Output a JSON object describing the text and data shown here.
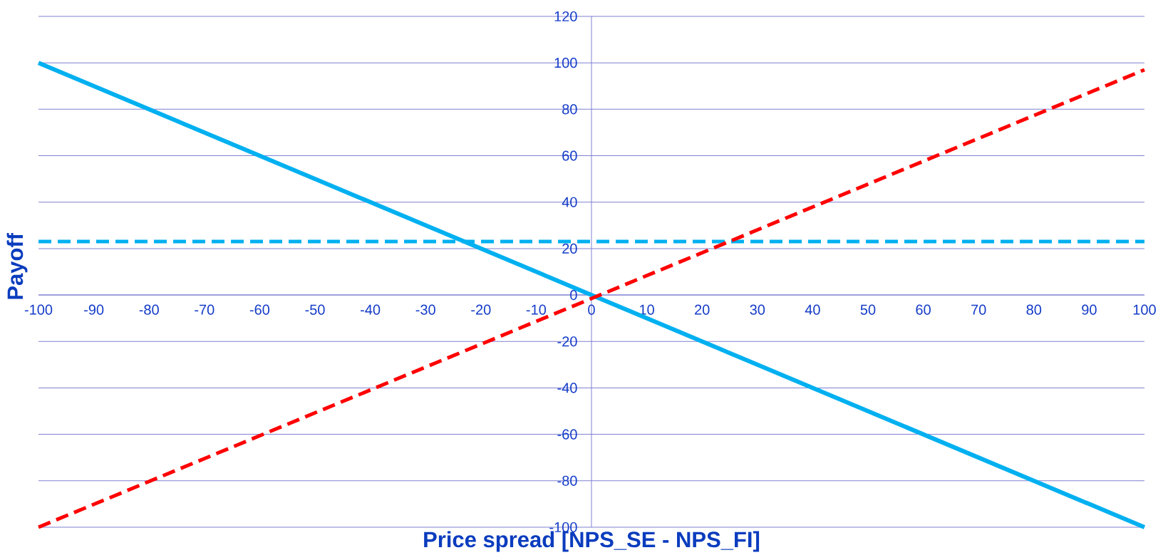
{
  "chart_data": {
    "type": "line",
    "xlabel": "Price spread [NPS_SE - NPS_FI]",
    "ylabel": "Payoff",
    "xlim": [
      -100,
      100
    ],
    "ylim": [
      -100,
      120
    ],
    "xticks": [
      -100,
      -90,
      -80,
      -70,
      -60,
      -50,
      -40,
      -30,
      -20,
      -10,
      0,
      10,
      20,
      30,
      40,
      50,
      60,
      70,
      80,
      90,
      100
    ],
    "yticks": [
      -100,
      -80,
      -60,
      -40,
      -20,
      0,
      20,
      40,
      60,
      80,
      100,
      120
    ],
    "grid": "y",
    "x": [
      -100,
      100
    ],
    "series": [
      {
        "color": "#00b0f0",
        "values": [
          100,
          -100
        ],
        "line_style": "solid"
      },
      {
        "color": "#00b0f0",
        "values": [
          23,
          23
        ],
        "line_style": "dashed"
      },
      {
        "color": "#ff0000",
        "values": [
          -100,
          97
        ],
        "line_style": "dashed"
      }
    ]
  }
}
